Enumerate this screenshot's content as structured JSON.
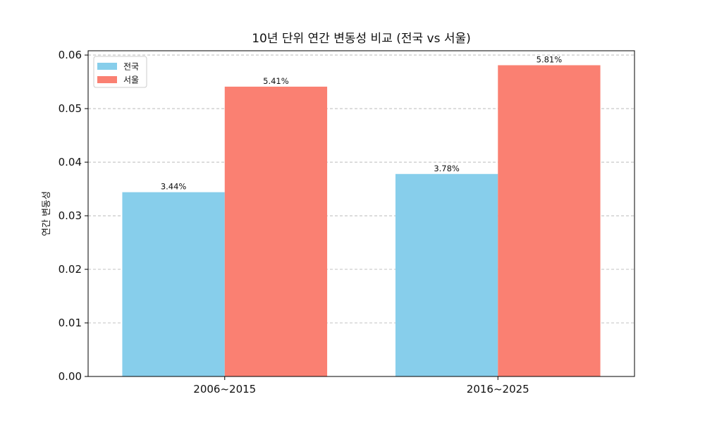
{
  "chart_data": {
    "type": "bar",
    "title": "10년 단위 연간 변동성 비교 (전국 vs 서울)",
    "xlabel": "",
    "ylabel": "연간 변동성",
    "categories": [
      "2006~2015",
      "2016~2025"
    ],
    "series": [
      {
        "name": "전국",
        "values": [
          0.0344,
          0.0378
        ],
        "labels": [
          "3.44%",
          "3.78%"
        ],
        "color": "#87CEEB"
      },
      {
        "name": "서울",
        "values": [
          0.0541,
          0.0581
        ],
        "labels": [
          "5.41%",
          "5.81%"
        ],
        "color": "#FA8072"
      }
    ],
    "ylim": [
      0,
      0.0608
    ],
    "yticks": [
      0,
      0.01,
      0.02,
      0.03,
      0.04,
      0.05,
      0.06
    ],
    "ytick_labels": [
      "0.00",
      "0.01",
      "0.02",
      "0.03",
      "0.04",
      "0.05",
      "0.06"
    ],
    "grid": "y dashed",
    "legend": "upper-left"
  }
}
